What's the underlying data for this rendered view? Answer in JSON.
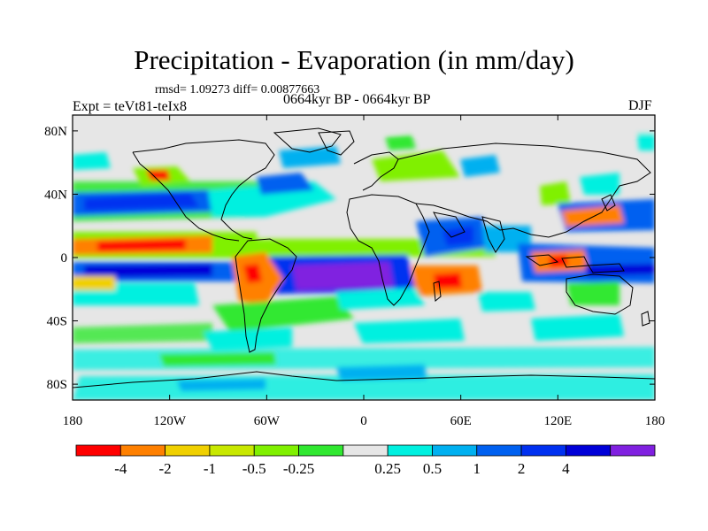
{
  "title": "Precipitation - Evaporation (in mm/day)",
  "stats": "rmsd= 1.09273 diff= 0.00877663",
  "period": "0664kyr BP - 0664kyr BP",
  "experiment": "Expt = teVt81-teIx8",
  "season": "DJF",
  "axes": {
    "y_ticks": [
      {
        "label": "80N",
        "lat": 80
      },
      {
        "label": "40N",
        "lat": 40
      },
      {
        "label": "0",
        "lat": 0
      },
      {
        "label": "40S",
        "lat": -40
      },
      {
        "label": "80S",
        "lat": -80
      }
    ],
    "x_ticks": [
      {
        "label": "180",
        "lon": -180
      },
      {
        "label": "120W",
        "lon": -120
      },
      {
        "label": "60W",
        "lon": -60
      },
      {
        "label": "0",
        "lon": 0
      },
      {
        "label": "60E",
        "lon": 60
      },
      {
        "label": "120E",
        "lon": 120
      },
      {
        "label": "180",
        "lon": 180
      }
    ],
    "lat_range": [
      -90,
      90
    ],
    "lon_range": [
      -180,
      180
    ]
  },
  "colorbar": {
    "colors": [
      "#ff0000",
      "#ff8000",
      "#f0d000",
      "#c8e800",
      "#80f000",
      "#30e830",
      "#e6e6e6",
      "#00f0e0",
      "#00b0f0",
      "#0060f0",
      "#0030f0",
      "#0000d8",
      "#8020e0"
    ],
    "labels": [
      "-4",
      "-2",
      "-1",
      "-0.5",
      "-0.25",
      "0.25",
      "0.5",
      "1",
      "2",
      "4"
    ]
  },
  "colors": {
    "ocean_background": "#e6e6e6",
    "coastline": "#000000"
  }
}
